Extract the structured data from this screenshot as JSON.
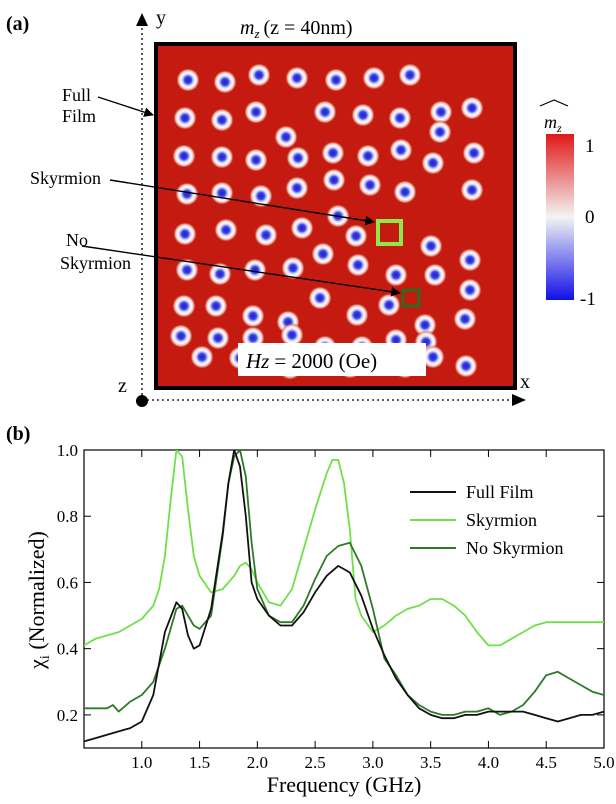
{
  "panel_a": {
    "label": "(a)",
    "title_symbol": "m",
    "title_sub": "z",
    "title_rest": "(z = 40nm)",
    "axis_y": "y",
    "axis_x": "x",
    "axis_z": "z",
    "annot_full_line1": "Full",
    "annot_full_line2": "Film",
    "annot_skyrmion": "Skyrmion",
    "annot_no_line1": "No",
    "annot_no_line2": "Skyrmion",
    "field_symbol": "Hz",
    "field_rest": "= 2000 (Oe)",
    "colorbar": {
      "title_symbol": "m",
      "title_sub": "z",
      "tick_top": "1",
      "tick_mid": "0",
      "tick_bottom": "-1"
    },
    "colors": {
      "background_red": "#c41a10",
      "frame": "#000000",
      "skyrmion_core": "#1a1fd6",
      "skyrmion_box": "#8ee84a",
      "no_skyrmion_box": "#2f6b1e"
    },
    "skyrmion_rows": [
      [
        [
          188,
          80
        ],
        [
          225,
          82
        ],
        [
          259,
          75
        ],
        [
          297,
          78
        ],
        [
          336,
          80
        ],
        [
          374,
          78
        ],
        [
          410,
          75
        ]
      ],
      [
        [
          185,
          118
        ],
        [
          222,
          120
        ],
        [
          256,
          112
        ],
        [
          325,
          112
        ],
        [
          363,
          115
        ],
        [
          400,
          118
        ],
        [
          441,
          112
        ],
        [
          472,
          108
        ]
      ],
      [
        [
          286,
          137
        ],
        [
          440,
          132
        ]
      ],
      [
        [
          184,
          156
        ],
        [
          222,
          157
        ],
        [
          256,
          160
        ],
        [
          298,
          158
        ],
        [
          333,
          153
        ],
        [
          368,
          156
        ],
        [
          401,
          150
        ],
        [
          433,
          163
        ],
        [
          474,
          153
        ]
      ],
      [
        [
          187,
          194
        ],
        [
          222,
          193
        ],
        [
          261,
          196
        ],
        [
          297,
          188
        ],
        [
          334,
          180
        ],
        [
          370,
          185
        ],
        [
          405,
          192
        ],
        [
          472,
          190
        ]
      ],
      [
        [
          185,
          234
        ],
        [
          226,
          230
        ],
        [
          266,
          235
        ],
        [
          302,
          228
        ],
        [
          338,
          216
        ],
        [
          356,
          236
        ],
        [
          431,
          246
        ],
        [
          470,
          260
        ]
      ],
      [
        [
          187,
          270
        ],
        [
          220,
          274
        ],
        [
          255,
          270
        ],
        [
          293,
          268
        ],
        [
          323,
          254
        ],
        [
          358,
          265
        ],
        [
          396,
          275
        ],
        [
          435,
          275
        ],
        [
          470,
          290
        ]
      ],
      [
        [
          184,
          306
        ],
        [
          216,
          306
        ],
        [
          253,
          316
        ],
        [
          288,
          322
        ],
        [
          320,
          298
        ],
        [
          357,
          315
        ],
        [
          389,
          305
        ],
        [
          425,
          325
        ],
        [
          465,
          319
        ]
      ],
      [
        [
          181,
          336
        ],
        [
          218,
          338
        ],
        [
          253,
          338
        ],
        [
          292,
          335
        ],
        [
          325,
          347
        ],
        [
          362,
          347
        ],
        [
          396,
          340
        ],
        [
          426,
          342
        ]
      ],
      [
        [
          202,
          357
        ],
        [
          240,
          358
        ],
        [
          290,
          368
        ],
        [
          350,
          367
        ],
        [
          405,
          367
        ],
        [
          433,
          357
        ],
        [
          466,
          366
        ]
      ]
    ]
  },
  "panel_b": {
    "label": "(b)",
    "ylabel_main": "χ",
    "ylabel_sub": "i",
    "ylabel_rest": " (Normalized)",
    "xlabel": "Frequency (GHz)"
  },
  "chart_data": {
    "type": "line",
    "title": "",
    "xlabel": "Frequency (GHz)",
    "ylabel": "χi (Normalized)",
    "xlim": [
      0.5,
      5.0
    ],
    "ylim": [
      0.1,
      1.0
    ],
    "xticks": [
      "1.0",
      "1.5",
      "2.0",
      "2.5",
      "3.0",
      "3.5",
      "4.0",
      "4.5",
      "5.0"
    ],
    "yticks": [
      "0.2",
      "0.4",
      "0.6",
      "0.8",
      "1.0"
    ],
    "legend_position": "top-right",
    "grid": false,
    "series": [
      {
        "name": "Full Film",
        "color": "#111111",
        "x": [
          0.5,
          0.6,
          0.7,
          0.8,
          0.9,
          1.0,
          1.1,
          1.2,
          1.3,
          1.35,
          1.4,
          1.45,
          1.5,
          1.6,
          1.7,
          1.75,
          1.8,
          1.85,
          1.9,
          1.95,
          2.0,
          2.1,
          2.2,
          2.3,
          2.4,
          2.5,
          2.6,
          2.7,
          2.8,
          2.9,
          3.0,
          3.1,
          3.2,
          3.3,
          3.4,
          3.5,
          3.6,
          3.7,
          3.8,
          3.9,
          4.0,
          4.1,
          4.2,
          4.3,
          4.4,
          4.5,
          4.6,
          4.7,
          4.8,
          4.9,
          5.0
        ],
        "y": [
          0.12,
          0.13,
          0.14,
          0.15,
          0.16,
          0.18,
          0.26,
          0.45,
          0.54,
          0.52,
          0.44,
          0.4,
          0.41,
          0.52,
          0.75,
          0.9,
          1.0,
          0.95,
          0.8,
          0.6,
          0.55,
          0.5,
          0.47,
          0.47,
          0.51,
          0.57,
          0.62,
          0.65,
          0.63,
          0.56,
          0.46,
          0.38,
          0.31,
          0.26,
          0.22,
          0.2,
          0.19,
          0.19,
          0.2,
          0.2,
          0.21,
          0.21,
          0.21,
          0.21,
          0.2,
          0.19,
          0.18,
          0.19,
          0.2,
          0.2,
          0.21
        ]
      },
      {
        "name": "Skyrmion",
        "color": "#6fe04a",
        "x": [
          0.5,
          0.6,
          0.7,
          0.8,
          0.9,
          1.0,
          1.1,
          1.15,
          1.2,
          1.25,
          1.3,
          1.35,
          1.4,
          1.45,
          1.5,
          1.6,
          1.7,
          1.8,
          1.85,
          1.9,
          1.95,
          2.0,
          2.1,
          2.2,
          2.3,
          2.4,
          2.5,
          2.6,
          2.65,
          2.7,
          2.75,
          2.8,
          2.85,
          2.9,
          3.0,
          3.1,
          3.2,
          3.3,
          3.4,
          3.5,
          3.6,
          3.7,
          3.8,
          3.9,
          4.0,
          4.1,
          4.2,
          4.3,
          4.4,
          4.5,
          4.6,
          4.7,
          4.8,
          4.9,
          5.0
        ],
        "y": [
          0.41,
          0.43,
          0.44,
          0.45,
          0.47,
          0.49,
          0.53,
          0.58,
          0.68,
          0.85,
          1.0,
          0.98,
          0.82,
          0.68,
          0.62,
          0.57,
          0.58,
          0.62,
          0.65,
          0.66,
          0.64,
          0.6,
          0.54,
          0.53,
          0.58,
          0.7,
          0.82,
          0.93,
          0.97,
          0.97,
          0.9,
          0.76,
          0.55,
          0.5,
          0.45,
          0.47,
          0.5,
          0.52,
          0.53,
          0.55,
          0.55,
          0.53,
          0.5,
          0.45,
          0.41,
          0.41,
          0.43,
          0.45,
          0.47,
          0.48,
          0.48,
          0.48,
          0.48,
          0.48,
          0.48
        ]
      },
      {
        "name": "No Skyrmion",
        "color": "#2f7a2a",
        "x": [
          0.5,
          0.6,
          0.7,
          0.75,
          0.8,
          0.9,
          1.0,
          1.1,
          1.2,
          1.3,
          1.35,
          1.4,
          1.45,
          1.5,
          1.6,
          1.7,
          1.75,
          1.8,
          1.85,
          1.9,
          1.95,
          2.0,
          2.1,
          2.2,
          2.3,
          2.4,
          2.5,
          2.6,
          2.7,
          2.8,
          2.9,
          3.0,
          3.1,
          3.2,
          3.3,
          3.4,
          3.5,
          3.6,
          3.7,
          3.8,
          3.9,
          4.0,
          4.1,
          4.2,
          4.3,
          4.4,
          4.5,
          4.6,
          4.7,
          4.8,
          4.9,
          5.0
        ],
        "y": [
          0.22,
          0.22,
          0.22,
          0.23,
          0.21,
          0.24,
          0.26,
          0.3,
          0.4,
          0.52,
          0.53,
          0.5,
          0.47,
          0.46,
          0.5,
          0.74,
          0.9,
          0.98,
          1.0,
          0.92,
          0.72,
          0.58,
          0.5,
          0.48,
          0.48,
          0.53,
          0.61,
          0.68,
          0.71,
          0.72,
          0.65,
          0.52,
          0.37,
          0.32,
          0.26,
          0.23,
          0.21,
          0.2,
          0.2,
          0.21,
          0.21,
          0.22,
          0.2,
          0.21,
          0.23,
          0.27,
          0.32,
          0.33,
          0.31,
          0.29,
          0.27,
          0.26
        ]
      }
    ]
  }
}
